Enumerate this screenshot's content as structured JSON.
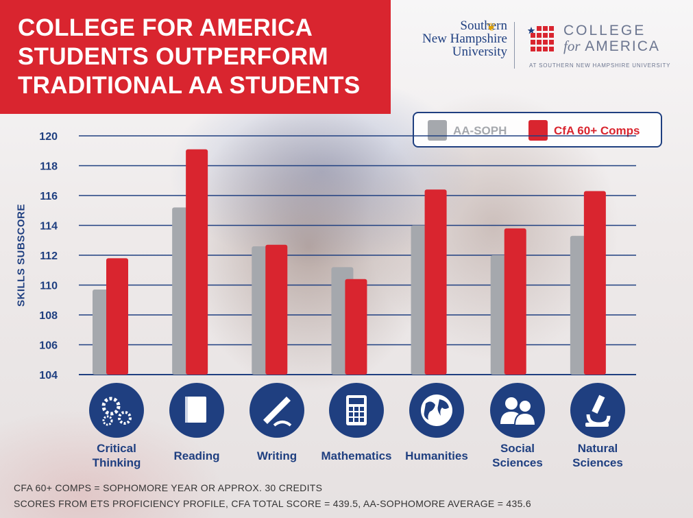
{
  "title": {
    "line1": "COLLEGE FOR AMERICA",
    "line2": "STUDENTS OUTPERFORM",
    "line3": "TRADITIONAL AA STUDENTS"
  },
  "logos": {
    "snhu_line1": "Southern",
    "snhu_line2": "New Hampshire",
    "snhu_line3": "University",
    "cfa_line1": "COLLEGE",
    "cfa_line2_for": "for",
    "cfa_line2_america": "AMERICA",
    "cfa_sub": "AT SOUTHERN NEW HAMPSHIRE UNIVERSITY"
  },
  "colors": {
    "aa": "#a5a8ad",
    "cfa": "#d9252f",
    "navy": "#1f3f80",
    "title_bg": "#d9252f"
  },
  "chart_data": {
    "type": "bar",
    "categories": [
      "Critical Thinking",
      "Reading",
      "Writing",
      "Mathematics",
      "Humanities",
      "Social Sciences",
      "Natural Sciences"
    ],
    "category_lines": [
      [
        "Critical",
        "Thinking"
      ],
      [
        "Reading"
      ],
      [
        "Writing"
      ],
      [
        "Mathematics"
      ],
      [
        "Humanities"
      ],
      [
        "Social",
        "Sciences"
      ],
      [
        "Natural",
        "Sciences"
      ]
    ],
    "category_icons": [
      "gears-icon",
      "book-icon",
      "pen-writing-icon",
      "calculator-icon",
      "globe-icon",
      "people-icon",
      "microscope-icon"
    ],
    "series": [
      {
        "name": "AA-SOPH",
        "values": [
          109.7,
          115.2,
          112.6,
          111.2,
          114.0,
          112.0,
          113.3
        ]
      },
      {
        "name": "CfA 60+ Comps",
        "values": [
          111.8,
          119.1,
          112.7,
          110.4,
          116.4,
          113.8,
          116.3
        ]
      }
    ],
    "ylabel": "SKILLS SUBSCORE",
    "ylim": [
      104,
      120
    ],
    "yticks": [
      104,
      106,
      108,
      110,
      112,
      114,
      116,
      118,
      120
    ],
    "grid": true,
    "legend_position": "top-right"
  },
  "footnotes": {
    "line1": "CFA 60+ COMPS = SOPHOMORE YEAR OR APPROX. 30 CREDITS",
    "line2": "SCORES FROM ETS PROFICIENCY PROFILE, CFA TOTAL SCORE = 439.5, AA-SOPHOMORE AVERAGE = 435.6"
  }
}
